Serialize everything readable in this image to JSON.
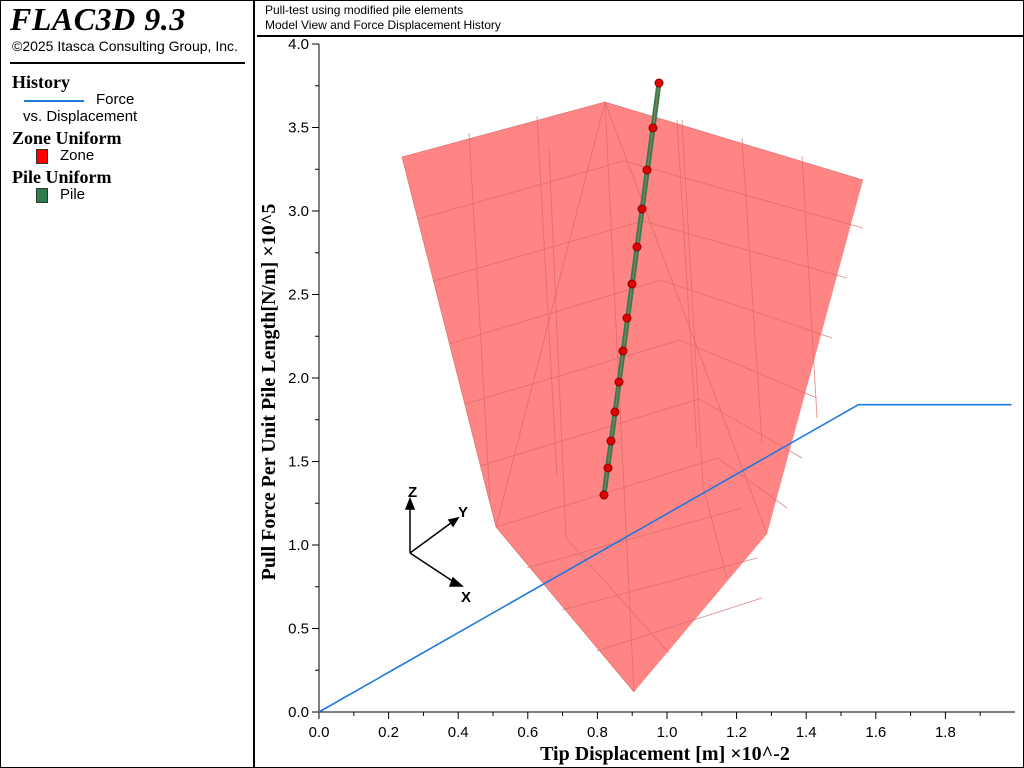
{
  "app": {
    "title": "FLAC3D 9.3",
    "copyright": "©2025 Itasca Consulting Group, Inc."
  },
  "header": {
    "line1": "Pull-test using modified pile elements",
    "line2": "Model View and Force Displacement History"
  },
  "legend": {
    "history": {
      "title": "History",
      "line1": "Force",
      "line2": "vs. Displacement",
      "color": "#1f78e0"
    },
    "zone": {
      "title": "Zone Uniform",
      "label": "Zone",
      "color": "#ff0000"
    },
    "pile": {
      "title": "Pile Uniform",
      "label": "Pile",
      "color": "#2e7d4f"
    }
  },
  "axes_triad": {
    "x": "X",
    "y": "Y",
    "z": "Z"
  },
  "chart_data": {
    "type": "line",
    "xlabel": "Tip Displacement [m] ×10^-2",
    "ylabel": "Pull Force Per Unit Pile Length[N/m] ×10^5",
    "xlim": [
      0,
      2.0
    ],
    "ylim": [
      0,
      4.0
    ],
    "xticks": [
      "0.0",
      "0.2",
      "0.4",
      "0.6",
      "0.8",
      "1.0",
      "1.2",
      "1.4",
      "1.6",
      "1.8"
    ],
    "yticks": [
      "0.0",
      "0.5",
      "1.0",
      "1.5",
      "2.0",
      "2.5",
      "3.0",
      "3.5",
      "4.0"
    ],
    "series": [
      {
        "color": "#1f78e0",
        "x": [
          0.0,
          1.55,
          1.6,
          1.99
        ],
        "y": [
          0.0,
          1.84,
          1.84,
          1.84
        ]
      }
    ]
  }
}
